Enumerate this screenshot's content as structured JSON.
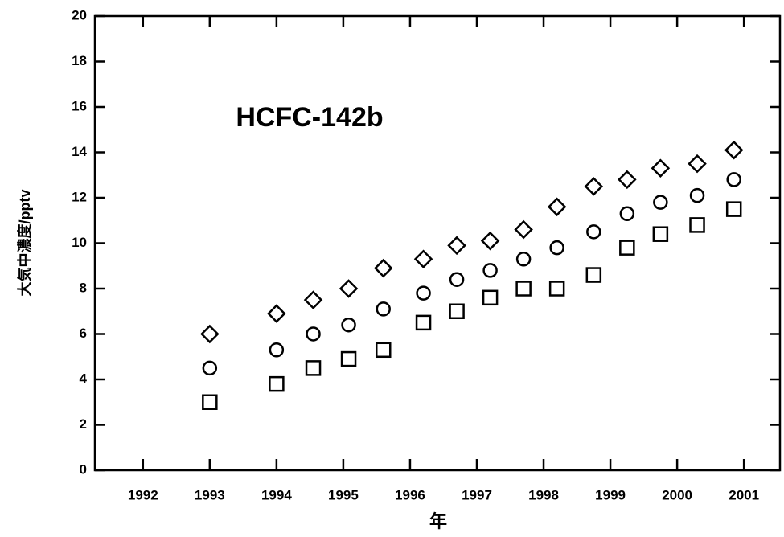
{
  "chart_data": {
    "type": "scatter",
    "annotation": "HCFC-142b",
    "xlabel": "年",
    "ylabel": "大気中濃度/pptv",
    "xlim": [
      1991.28,
      2001.54
    ],
    "xticks": [
      1992,
      1993,
      1994,
      1995,
      1996,
      1997,
      1998,
      1999,
      2000,
      2001
    ],
    "ylim": [
      0,
      20
    ],
    "yticks": [
      0,
      2,
      4,
      6,
      8,
      10,
      12,
      14,
      16,
      18,
      20
    ],
    "x": [
      1993.0,
      1994.0,
      1994.55,
      1995.08,
      1995.6,
      1996.2,
      1996.7,
      1997.2,
      1997.7,
      1998.2,
      1998.75,
      1999.25,
      1999.75,
      2000.3,
      2000.85
    ],
    "series": [
      {
        "marker": "diamond",
        "color": "#000000",
        "values": [
          6.0,
          6.9,
          7.5,
          8.0,
          8.9,
          9.3,
          9.9,
          10.1,
          10.6,
          11.6,
          12.5,
          12.8,
          13.3,
          13.5,
          14.1
        ]
      },
      {
        "marker": "circle",
        "color": "#000000",
        "values": [
          4.5,
          5.3,
          6.0,
          6.4,
          7.1,
          7.8,
          8.4,
          8.8,
          9.3,
          9.8,
          10.5,
          11.3,
          11.8,
          12.1,
          12.8
        ]
      },
      {
        "marker": "square",
        "color": "#000000",
        "values": [
          3.0,
          3.8,
          4.5,
          4.9,
          5.3,
          6.5,
          7.0,
          7.6,
          8.0,
          8.0,
          8.6,
          9.8,
          10.4,
          10.8,
          11.5
        ]
      }
    ]
  }
}
